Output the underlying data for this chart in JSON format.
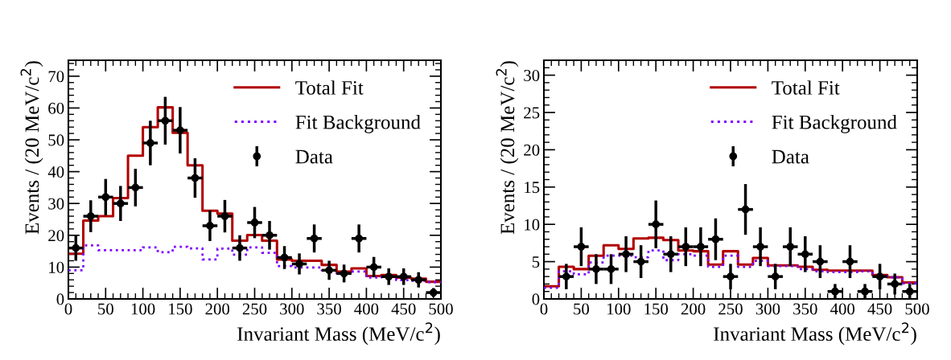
{
  "chart_data": [
    {
      "type": "scatter",
      "xlabel": "Invariant Mass (MeV/c$^{2}$)",
      "ylabel": "Events / (20 MeV/c$^{2}$)",
      "xlim": [
        0,
        500
      ],
      "ylim": [
        0,
        75
      ],
      "xticks": [
        0,
        50,
        100,
        150,
        200,
        250,
        300,
        350,
        400,
        450,
        500
      ],
      "yticks": [
        0,
        10,
        20,
        30,
        40,
        50,
        60,
        70
      ],
      "legend": "top right",
      "grid": false,
      "series": [
        {
          "name": "Total Fit",
          "type": "step",
          "color": "#b20000",
          "line_style": "solid",
          "x": [
            0,
            20,
            40,
            60,
            80,
            100,
            120,
            140,
            160,
            180,
            200,
            220,
            240,
            260,
            280,
            300,
            320,
            340,
            360,
            380,
            400,
            420,
            440,
            460,
            480,
            500
          ],
          "values": [
            14.2,
            24.6,
            26,
            31.7,
            45,
            54,
            60.2,
            52.2,
            42,
            27.7,
            26.8,
            18.3,
            20.1,
            18.3,
            12.4,
            12,
            12,
            10.7,
            8.6,
            9.6,
            7.2,
            7.5,
            6.7,
            6.4,
            5.4,
            5.4
          ]
        },
        {
          "name": "Fit Background",
          "type": "step",
          "color": "#7f00ff",
          "line_style": "dotted",
          "x": [
            0,
            20,
            40,
            60,
            80,
            100,
            120,
            140,
            160,
            180,
            200,
            220,
            240,
            260,
            280,
            300,
            320,
            340,
            360,
            380,
            400,
            420,
            440,
            460,
            480,
            500
          ],
          "values": [
            9,
            16.8,
            15.3,
            15.3,
            15.3,
            16.2,
            14.7,
            16.4,
            15.9,
            12.4,
            15.8,
            13.9,
            16.2,
            14.5,
            10.3,
            9.9,
            9.9,
            9,
            8,
            8.6,
            6.7,
            7,
            5.9,
            5.7,
            5.3,
            5.3
          ]
        },
        {
          "name": "Data",
          "color": "#000000",
          "marker": "circle",
          "x": [
            10,
            30,
            50,
            70,
            90,
            110,
            130,
            150,
            170,
            190,
            210,
            230,
            250,
            270,
            290,
            310,
            330,
            350,
            370,
            390,
            410,
            430,
            450,
            470,
            490
          ],
          "values": [
            16,
            26,
            32,
            30,
            35,
            49,
            56,
            53,
            38,
            23,
            26,
            16,
            24,
            20,
            13,
            11,
            19,
            9,
            8,
            19,
            10,
            7,
            7,
            6,
            2
          ],
          "errors": [
            4,
            5,
            5.7,
            5.5,
            5.9,
            7,
            7.5,
            7.3,
            6.2,
            4.8,
            5.1,
            4,
            4.9,
            4.5,
            3.6,
            3.3,
            4.4,
            3,
            2.8,
            4.4,
            3.2,
            2.6,
            2.6,
            2.4,
            1.4
          ],
          "xerrors": [
            10,
            10,
            10,
            10,
            10,
            10,
            10,
            10,
            10,
            10,
            10,
            10,
            10,
            10,
            10,
            10,
            10,
            10,
            10,
            10,
            10,
            10,
            10,
            10,
            10
          ]
        }
      ]
    },
    {
      "type": "scatter",
      "xlabel": "Invariant Mass (MeV/c$^{2}$)",
      "ylabel": "Events / (20 MeV/c$^{2}$)",
      "xlim": [
        0,
        500
      ],
      "ylim": [
        0,
        32
      ],
      "xticks": [
        0,
        50,
        100,
        150,
        200,
        250,
        300,
        350,
        400,
        450,
        500
      ],
      "yticks": [
        0,
        5,
        10,
        15,
        20,
        25,
        30
      ],
      "legend": "top right",
      "grid": false,
      "series": [
        {
          "name": "Total Fit",
          "type": "step",
          "color": "#b20000",
          "line_style": "solid",
          "x": [
            0,
            20,
            40,
            60,
            80,
            100,
            120,
            140,
            160,
            180,
            200,
            220,
            240,
            260,
            280,
            300,
            320,
            340,
            360,
            380,
            400,
            420,
            440,
            460,
            480,
            500
          ],
          "values": [
            1.7,
            4.3,
            4.0,
            5.8,
            7.2,
            6.7,
            8.1,
            8.2,
            7.9,
            6.5,
            6.4,
            4.6,
            6.4,
            4.6,
            5.5,
            4.5,
            4.5,
            4.3,
            3.9,
            3.8,
            3.8,
            3.8,
            3.2,
            2.9,
            2.2,
            2.2
          ]
        },
        {
          "name": "Fit Background",
          "type": "step",
          "color": "#7f00ff",
          "line_style": "dotted",
          "x": [
            0,
            20,
            40,
            60,
            80,
            100,
            120,
            140,
            160,
            180,
            200,
            220,
            240,
            260,
            280,
            300,
            320,
            340,
            360,
            380,
            400,
            420,
            440,
            460,
            480,
            500
          ],
          "values": [
            1.5,
            3.7,
            3.3,
            4.9,
            5.8,
            5.8,
            5.6,
            6.5,
            5.2,
            6.0,
            5.8,
            4.3,
            5.8,
            4.3,
            5.1,
            4.4,
            4.4,
            4.0,
            3.7,
            3.6,
            3.6,
            3.7,
            3.0,
            2.9,
            2.1,
            2.1
          ]
        },
        {
          "name": "Data",
          "color": "#000000",
          "marker": "circle",
          "x": [
            30,
            50,
            70,
            90,
            110,
            130,
            150,
            170,
            190,
            210,
            230,
            250,
            270,
            290,
            310,
            330,
            350,
            370,
            390,
            410,
            430,
            450,
            470,
            490
          ],
          "values": [
            3,
            7,
            4,
            4,
            6,
            5,
            10,
            6,
            7,
            7,
            8,
            3,
            12,
            7,
            3,
            7,
            6,
            5,
            1,
            5,
            1,
            3,
            2,
            1
          ],
          "errors": [
            1.7,
            2.6,
            2,
            2,
            2.4,
            2.2,
            3.2,
            2.4,
            2.6,
            2.6,
            2.8,
            1.7,
            3.4,
            2.6,
            1.7,
            2.6,
            2.4,
            2.2,
            1,
            2.2,
            1,
            1.7,
            1.4,
            1
          ],
          "xerrors": [
            10,
            10,
            10,
            10,
            10,
            10,
            10,
            10,
            10,
            10,
            10,
            10,
            10,
            10,
            10,
            10,
            10,
            10,
            10,
            10,
            10,
            10,
            10,
            10
          ]
        }
      ]
    }
  ]
}
